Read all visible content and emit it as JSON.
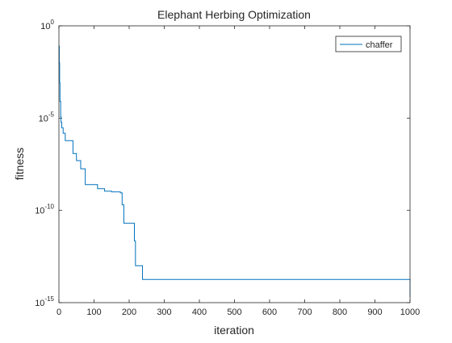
{
  "chart_data": {
    "type": "line",
    "title": "Elephant Herbing Optimization",
    "xlabel": "iteration",
    "ylabel": "fitness",
    "xlim": [
      0,
      1000
    ],
    "ylim": [
      1e-15,
      1
    ],
    "y_scale": "log",
    "grid": false,
    "legend_position": "top-right",
    "x_ticks": [
      0,
      100,
      200,
      300,
      400,
      500,
      600,
      700,
      800,
      900,
      1000
    ],
    "y_ticks": [
      {
        "value": 1e-15,
        "base": "10",
        "exp": "-15"
      },
      {
        "value": 1e-10,
        "base": "10",
        "exp": "-10"
      },
      {
        "value": 1e-05,
        "base": "10",
        "exp": "-5"
      },
      {
        "value": 1,
        "base": "10",
        "exp": "0"
      }
    ],
    "series": [
      {
        "name": "chaffer",
        "color": "#0072BD",
        "step": true,
        "x": [
          0,
          1,
          2,
          3,
          5,
          6,
          8,
          12,
          18,
          30,
          40,
          50,
          62,
          75,
          110,
          130,
          150,
          175,
          180,
          185,
          208,
          215,
          218,
          228,
          238,
          1000
        ],
        "y": [
          0.08,
          0.01,
          0.0008,
          8e-05,
          1.2e-05,
          6e-06,
          3e-06,
          1.5e-06,
          6e-07,
          6e-07,
          1.2e-07,
          5e-08,
          1.8e-08,
          2.5e-09,
          1.5e-09,
          1.1e-09,
          1e-09,
          9e-10,
          2e-10,
          2e-11,
          2e-11,
          2.2e-12,
          1e-13,
          1e-13,
          1.8e-14,
          1.8e-14
        ]
      }
    ]
  }
}
